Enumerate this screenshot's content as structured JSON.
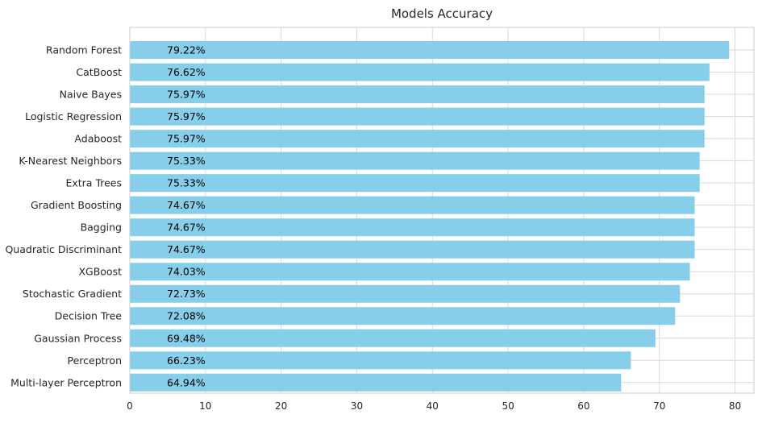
{
  "chart_data": {
    "type": "bar",
    "orientation": "horizontal",
    "title": "Models Accuracy",
    "xlabel": "",
    "ylabel": "",
    "xlim": [
      0,
      82.5
    ],
    "x_ticks": [
      0,
      10,
      20,
      30,
      40,
      50,
      60,
      70,
      80
    ],
    "grid": true,
    "bar_color": "#87CEEB",
    "grid_color": "#d9d9d9",
    "categories": [
      "Random Forest",
      "CatBoost",
      "Naive Bayes",
      "Logistic Regression",
      "Adaboost",
      "K-Nearest Neighbors",
      "Extra Trees",
      "Gradient Boosting",
      "Bagging",
      "Quadratic Discriminant",
      "XGBoost",
      "Stochastic Gradient",
      "Decision Tree",
      "Gaussian Process",
      "Perceptron",
      "Multi-layer Perceptron"
    ],
    "values": [
      79.22,
      76.62,
      75.97,
      75.97,
      75.97,
      75.33,
      75.33,
      74.67,
      74.67,
      74.67,
      74.03,
      72.73,
      72.08,
      69.48,
      66.23,
      64.94
    ],
    "data_labels": [
      "79.22%",
      "76.62%",
      "75.97%",
      "75.97%",
      "75.97%",
      "75.33%",
      "75.33%",
      "74.67%",
      "74.67%",
      "74.67%",
      "74.03%",
      "72.73%",
      "72.08%",
      "69.48%",
      "66.23%",
      "64.94%"
    ]
  }
}
